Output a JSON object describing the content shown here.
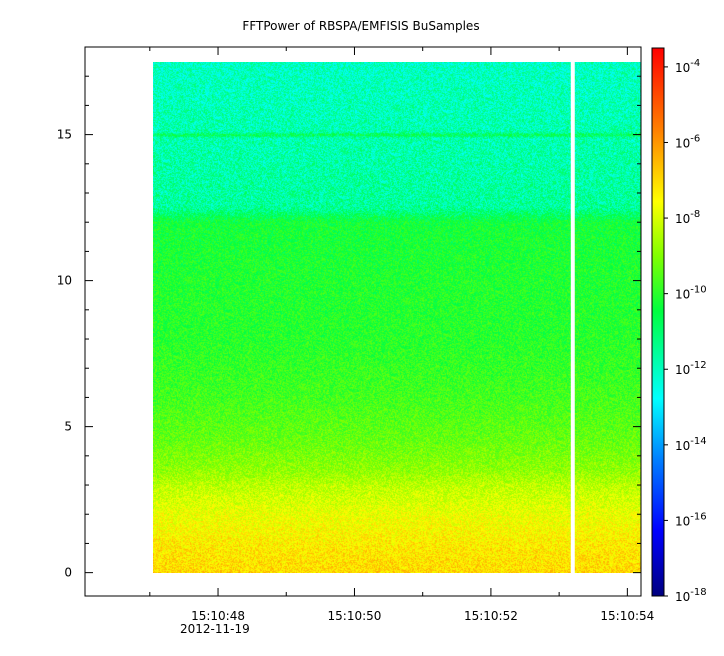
{
  "chart_data": {
    "type": "heatmap",
    "title": "FFTPower of RBSPA/EMFISIS  BuSamples",
    "xlabel": "",
    "ylabel": "",
    "x_range": [
      "15:10:46.05",
      "15:10:54.2"
    ],
    "y_range": [
      -0.8,
      18
    ],
    "date_label": "2012-11-19",
    "x_ticks": [
      {
        "value": "15:10:48",
        "label": "15:10:48"
      },
      {
        "value": "15:10:50",
        "label": "15:10:50"
      },
      {
        "value": "15:10:52",
        "label": "15:10:52"
      },
      {
        "value": "15:10:54",
        "label": "15:10:54"
      }
    ],
    "x_minor_ticks": [
      "15:10:47",
      "15:10:49",
      "15:10:51",
      "15:10:53"
    ],
    "y_ticks": [
      0,
      5,
      10,
      15
    ],
    "y_tick_labels": [
      "0",
      "5",
      "10",
      "15"
    ],
    "data_extent": {
      "time_start": "15:10:47.05",
      "time_end": "15:10:54.2",
      "freq_min": 0,
      "freq_max": 17.5,
      "gap_time": "15:10:53.2"
    },
    "spectral_profile": [
      {
        "freq": 0.0,
        "log10_power": -6.6
      },
      {
        "freq": 1.0,
        "log10_power": -6.9
      },
      {
        "freq": 2.0,
        "log10_power": -7.4
      },
      {
        "freq": 3.0,
        "log10_power": -8.1
      },
      {
        "freq": 3.5,
        "log10_power": -8.7
      },
      {
        "freq": 4.5,
        "log10_power": -9.3
      },
      {
        "freq": 6.0,
        "log10_power": -9.8
      },
      {
        "freq": 8.0,
        "log10_power": -10.2
      },
      {
        "freq": 10.0,
        "log10_power": -10.3
      },
      {
        "freq": 12.0,
        "log10_power": -10.5
      },
      {
        "freq": 12.5,
        "log10_power": -11.6
      },
      {
        "freq": 14.9,
        "log10_power": -11.8
      },
      {
        "freq": 15.0,
        "log10_power": -10.8
      },
      {
        "freq": 15.1,
        "log10_power": -11.8
      },
      {
        "freq": 17.5,
        "log10_power": -12.0
      }
    ],
    "colorbar": {
      "scale": "log",
      "min_exponent": -18,
      "max_exponent": -3.5,
      "tick_exponents": [
        -18,
        -16,
        -14,
        -12,
        -10,
        -8,
        -6,
        -4
      ],
      "tick_base": "10",
      "tick_exponent_labels": [
        "-18",
        "-16",
        "-14",
        "-12",
        "-10",
        "-8",
        "-6",
        "-4"
      ],
      "colormap": [
        "#00007f",
        "#0000ff",
        "#0080ff",
        "#00ffff",
        "#00ff40",
        "#80ff00",
        "#ffff00",
        "#ff8000",
        "#ff0000"
      ]
    },
    "grid": false,
    "legend": "none"
  }
}
